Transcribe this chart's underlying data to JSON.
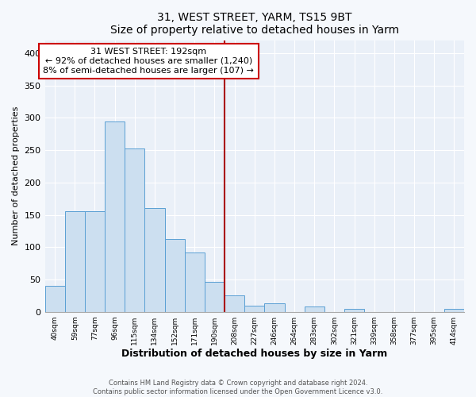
{
  "title": "31, WEST STREET, YARM, TS15 9BT",
  "subtitle": "Size of property relative to detached houses in Yarm",
  "xlabel": "Distribution of detached houses by size in Yarm",
  "ylabel": "Number of detached properties",
  "bar_labels": [
    "40sqm",
    "59sqm",
    "77sqm",
    "96sqm",
    "115sqm",
    "134sqm",
    "152sqm",
    "171sqm",
    "190sqm",
    "208sqm",
    "227sqm",
    "246sqm",
    "264sqm",
    "283sqm",
    "302sqm",
    "321sqm",
    "339sqm",
    "358sqm",
    "377sqm",
    "395sqm",
    "414sqm"
  ],
  "bar_values": [
    40,
    155,
    155,
    294,
    253,
    161,
    113,
    92,
    46,
    25,
    10,
    13,
    0,
    8,
    0,
    5,
    0,
    0,
    0,
    0,
    5
  ],
  "bar_color": "#ccdff0",
  "bar_edge_color": "#5a9fd4",
  "vline_x": 8.5,
  "vline_color": "#aa0000",
  "annotation_title": "31 WEST STREET: 192sqm",
  "annotation_line1": "← 92% of detached houses are smaller (1,240)",
  "annotation_line2": "8% of semi-detached houses are larger (107) →",
  "annotation_box_color": "#ffffff",
  "annotation_box_edge": "#cc0000",
  "ylim": [
    0,
    420
  ],
  "yticks": [
    0,
    50,
    100,
    150,
    200,
    250,
    300,
    350,
    400
  ],
  "footer_line1": "Contains HM Land Registry data © Crown copyright and database right 2024.",
  "footer_line2": "Contains public sector information licensed under the Open Government Licence v3.0.",
  "bg_color": "#f5f8fc",
  "plot_bg_color": "#eaf0f8",
  "grid_color": "#ffffff"
}
